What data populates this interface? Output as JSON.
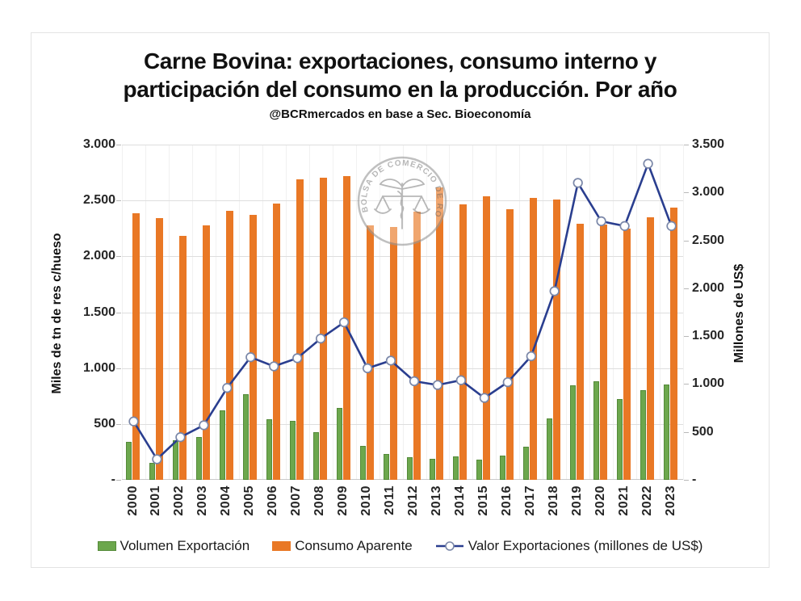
{
  "page": {
    "title_line1": "Carne Bovina: exportaciones, consumo interno y",
    "title_line2": "participación del consumo en la producción. Por año",
    "subtitle": "@BCRmercados en base a Sec. Bioeconomía"
  },
  "watermark": {
    "text": "BOLSA DE COMERCIO DE ROSARIO"
  },
  "colors": {
    "export_green": "#6ca74d",
    "export_green_border": "#558a39",
    "consumo_orange": "#e97825",
    "line_navy": "#2a3e8f",
    "marker_ring": "#7a87a8",
    "grid": "#dedede",
    "watermark_grey": "#8c8c8c"
  },
  "chart_data": {
    "type": "bar+line combo",
    "title": "Carne Bovina: exportaciones, consumo interno y participación del consumo en la producción. Por año",
    "subtitle": "@BCRmercados en base a Sec. Bioeconomía",
    "categories": [
      "2000",
      "2001",
      "2002",
      "2003",
      "2004",
      "2005",
      "2006",
      "2007",
      "2008",
      "2009",
      "2010",
      "2011",
      "2012",
      "2013",
      "2014",
      "2015",
      "2016",
      "2017",
      "2018",
      "2019",
      "2020",
      "2021",
      "2022",
      "2023"
    ],
    "series": [
      {
        "name": "Volumen Exportación",
        "type": "bar",
        "axis": "left",
        "color": "#6ca74d",
        "values": [
          340,
          150,
          355,
          385,
          620,
          770,
          545,
          530,
          425,
          645,
          305,
          230,
          205,
          185,
          210,
          180,
          215,
          295,
          550,
          845,
          880,
          720,
          800,
          855
        ]
      },
      {
        "name": "Consumo Aparente",
        "type": "bar",
        "axis": "left",
        "color": "#e97825",
        "values": [
          2385,
          2345,
          2180,
          2280,
          2405,
          2375,
          2475,
          2690,
          2705,
          2720,
          2275,
          2260,
          2400,
          2620,
          2465,
          2535,
          2420,
          2525,
          2510,
          2295,
          2285,
          2250,
          2350,
          2435
        ]
      },
      {
        "name": "Valor Exportaciones (millones de US$)",
        "type": "line",
        "axis": "right",
        "color": "#2a3e8f",
        "values": [
          610,
          215,
          445,
          570,
          960,
          1280,
          1185,
          1270,
          1475,
          1645,
          1165,
          1245,
          1030,
          990,
          1040,
          855,
          1020,
          1290,
          1970,
          3100,
          2700,
          2650,
          3300,
          2650
        ]
      }
    ],
    "left_axis": {
      "title": "Miles de tn de res c/hueso",
      "min": 0,
      "max": 3000,
      "step": 500,
      "tick_labels": [
        "3.000",
        "2.500",
        "2.000",
        "1.500",
        "1.000",
        "500",
        "-"
      ]
    },
    "right_axis": {
      "title": "Millones de US$",
      "min": 0,
      "max": 3500,
      "step": 500,
      "tick_labels": [
        "3.500",
        "3.000",
        "2.500",
        "2.000",
        "1.500",
        "1.000",
        "500",
        "-"
      ]
    },
    "legend_position": "bottom",
    "grid": "horizontal major + faint vertical category lines"
  }
}
